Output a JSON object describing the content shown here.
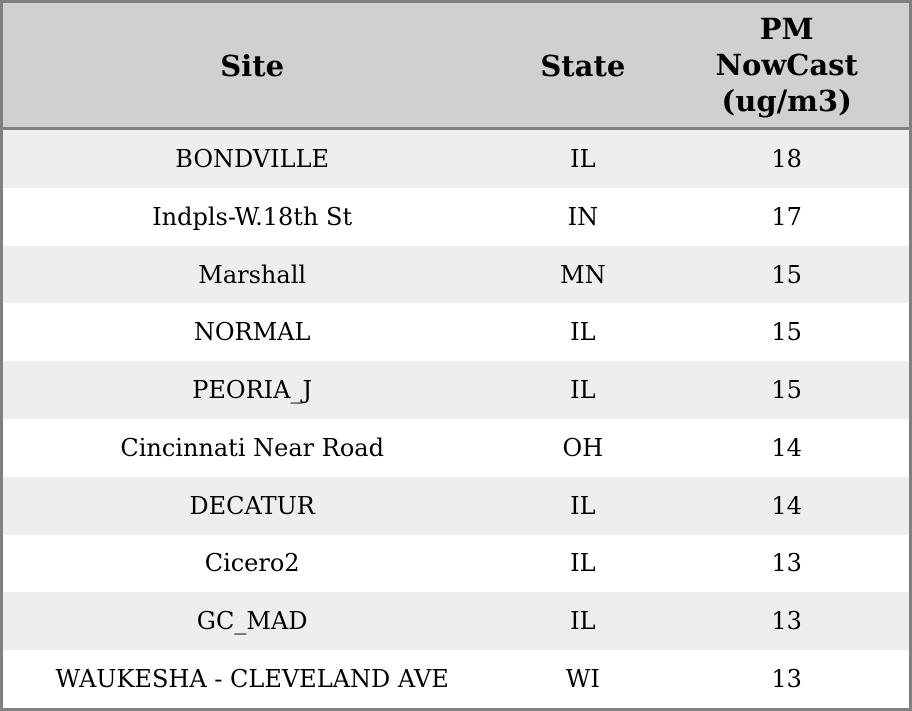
{
  "chart_data": {
    "type": "table",
    "columns": [
      "Site",
      "State",
      "PM NowCast (ug/m3)"
    ],
    "rows": [
      [
        "BONDVILLE",
        "IL",
        18
      ],
      [
        "Indpls-W.18th St",
        "IN",
        17
      ],
      [
        "Marshall",
        "MN",
        15
      ],
      [
        "NORMAL",
        "IL",
        15
      ],
      [
        "PEORIA_J",
        "IL",
        15
      ],
      [
        "Cincinnati Near Road",
        "OH",
        14
      ],
      [
        "DECATUR",
        "IL",
        14
      ],
      [
        "Cicero2",
        "IL",
        13
      ],
      [
        "GC_MAD",
        "IL",
        13
      ],
      [
        "WAUKESHA - CLEVELAND AVE",
        "WI",
        13
      ]
    ],
    "layout": {
      "striped": true,
      "stripe_pattern": "first data row shaded, alternating"
    }
  },
  "colors": {
    "header_bg": "#d0d0d0",
    "stripe_bg": "#eeeeee",
    "row_bg": "#ffffff",
    "border": "#808080",
    "text": "#000000"
  }
}
